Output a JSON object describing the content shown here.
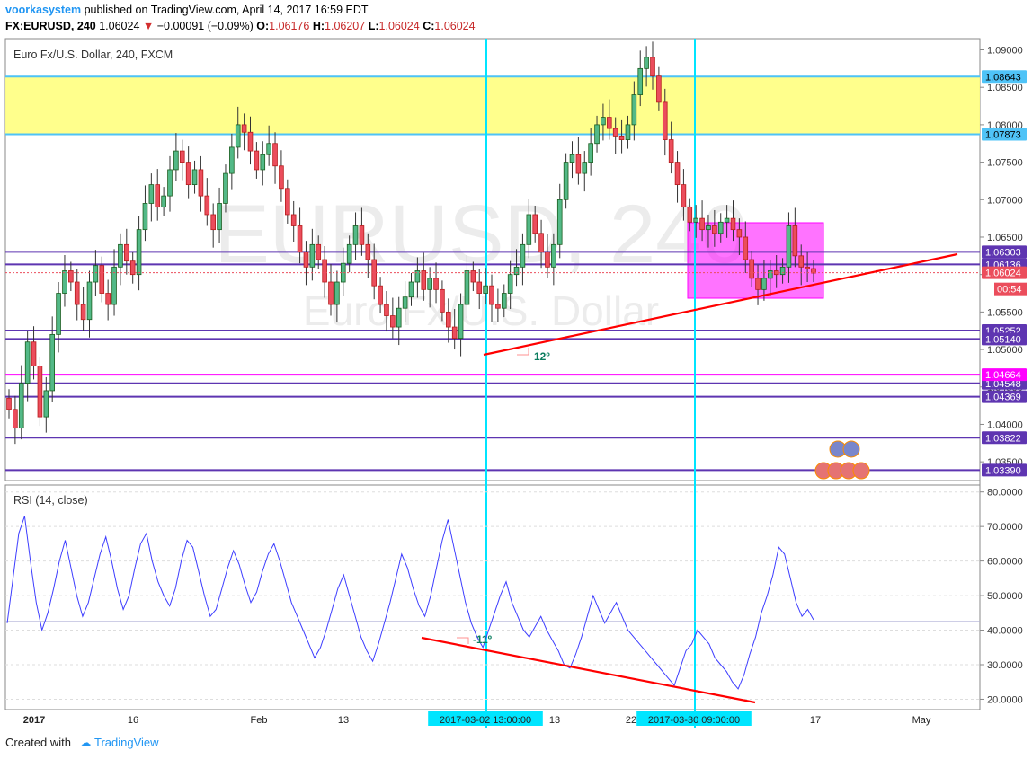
{
  "header": {
    "author": "voorkasystem",
    "published_text": "published on TradingView.com, April 14, 2017 16:59 EDT",
    "symbol": "FX:EURUSD, 240",
    "last": "1.06024",
    "change": "−0.00091 (−0.09%)",
    "o_label": "O:",
    "o_value": "1.06176",
    "h_label": "H:",
    "h_value": "1.06207",
    "l_label": "L:",
    "l_value": "1.06024",
    "c_label": "C:",
    "c_value": "1.06024"
  },
  "footer": {
    "created_with": "Created with",
    "brand": "TradingView"
  },
  "colors": {
    "up": "#53b987",
    "down": "#eb4d5c",
    "rsi": "#3d3dff",
    "zone": "#ffff7f",
    "zone_border": "#4fc3f7",
    "level": "#5e35b1",
    "magenta": "#ff00ff",
    "cursor": "#00e5ff",
    "trend": "#ff0000"
  },
  "chart_data": [
    {
      "type": "candlestick",
      "title": "Euro Fx/U.S. Dollar, 240, FXCM",
      "watermark_symbol": "EURUSD, 240",
      "watermark_name": "Euro Fx/U.S. Dollar",
      "ylim": [
        1.0325,
        1.0915
      ],
      "y_ticks": [
        "1.09000",
        "1.08500",
        "1.08000",
        "1.07500",
        "1.07000",
        "1.06500",
        "1.06000",
        "1.05500",
        "1.05000",
        "1.04500",
        "1.04000",
        "1.03500"
      ],
      "x_ticks": [
        "2017",
        "16",
        "Feb",
        "13",
        "2017-03-02 13:00:00",
        "13",
        "22",
        "2017-03-30 09:00:00",
        "17",
        "May"
      ],
      "horizontal_levels": [
        "1.06303",
        "1.06136",
        "1.05252",
        "1.05140",
        "1.04548",
        "1.04369",
        "1.03822",
        "1.03390"
      ],
      "magenta_level": "1.04664",
      "yellow_zone": [
        "1.07873",
        "1.08643"
      ],
      "last_price": "1.06024",
      "countdown": "00:54",
      "trendline_angle_label": "12º",
      "close_series": [
        1.042,
        1.0395,
        1.0455,
        1.051,
        1.0478,
        1.041,
        1.0445,
        1.052,
        1.0575,
        1.0605,
        1.059,
        1.056,
        1.054,
        1.059,
        1.0612,
        1.0575,
        1.056,
        1.061,
        1.064,
        1.0618,
        1.06,
        1.066,
        1.0695,
        1.072,
        1.069,
        1.0705,
        1.074,
        1.0765,
        1.075,
        1.072,
        1.074,
        1.0705,
        1.068,
        1.066,
        1.0695,
        1.0735,
        1.077,
        1.08,
        1.079,
        1.0765,
        1.074,
        1.076,
        1.0775,
        1.0745,
        1.0715,
        1.068,
        1.0665,
        1.063,
        1.061,
        1.064,
        1.062,
        1.059,
        1.056,
        1.059,
        1.0615,
        1.064,
        1.0665,
        1.064,
        1.062,
        1.0585,
        1.056,
        1.0545,
        1.053,
        1.0555,
        1.057,
        1.059,
        1.0605,
        1.058,
        1.0595,
        1.058,
        1.055,
        1.053,
        1.0515,
        1.056,
        1.0605,
        1.059,
        1.0575,
        1.0585,
        1.056,
        1.0555,
        1.0575,
        1.06,
        1.061,
        1.064,
        1.068,
        1.0655,
        1.063,
        1.061,
        1.064,
        1.07,
        1.075,
        1.076,
        1.0735,
        1.075,
        1.0775,
        1.08,
        1.081,
        1.0795,
        1.0785,
        1.078,
        1.08,
        1.084,
        1.0875,
        1.089,
        1.0865,
        1.083,
        1.078,
        1.075,
        1.072,
        1.069,
        1.067,
        1.0675,
        1.066,
        1.0665,
        1.0655,
        1.067,
        1.0675,
        1.066,
        1.065,
        1.062,
        1.0595,
        1.058,
        1.0595,
        1.0605,
        1.06,
        1.061,
        1.0665,
        1.0625,
        1.061,
        1.0608,
        1.0602
      ]
    },
    {
      "type": "line",
      "title": "RSI (14, close)",
      "series": [
        {
          "name": "RSI (14, close)",
          "values": [
            42,
            55,
            68,
            73,
            60,
            48,
            40,
            45,
            52,
            60,
            66,
            58,
            50,
            44,
            48,
            55,
            62,
            67,
            60,
            52,
            46,
            50,
            58,
            65,
            68,
            60,
            54,
            50,
            47,
            52,
            60,
            66,
            64,
            57,
            50,
            44,
            46,
            52,
            58,
            63,
            59,
            53,
            48,
            51,
            57,
            62,
            65,
            60,
            54,
            48,
            44,
            40,
            36,
            32,
            35,
            40,
            46,
            52,
            56,
            50,
            44,
            38,
            34,
            31,
            36,
            42,
            48,
            55,
            62,
            58,
            52,
            47,
            44,
            50,
            58,
            66,
            72,
            64,
            56,
            48,
            42,
            38,
            35,
            40,
            45,
            50,
            54,
            48,
            44,
            40,
            38,
            41,
            44,
            40,
            37,
            34,
            30,
            29,
            33,
            38,
            44,
            50,
            46,
            42,
            45,
            48,
            44,
            40,
            38,
            36,
            34,
            32,
            30,
            28,
            26,
            24,
            29,
            34,
            36,
            40,
            38,
            36,
            32,
            30,
            28,
            25,
            23,
            27,
            33,
            38,
            45,
            50,
            56,
            64,
            62,
            55,
            48,
            44,
            46,
            43
          ]
        }
      ],
      "ylim": [
        17,
        82
      ],
      "y_ticks": [
        "80.0000",
        "70.0000",
        "60.0000",
        "50.0000",
        "40.0000",
        "30.0000",
        "20.0000"
      ],
      "current_value_line": 42.5,
      "angle_label": "-11º"
    }
  ]
}
